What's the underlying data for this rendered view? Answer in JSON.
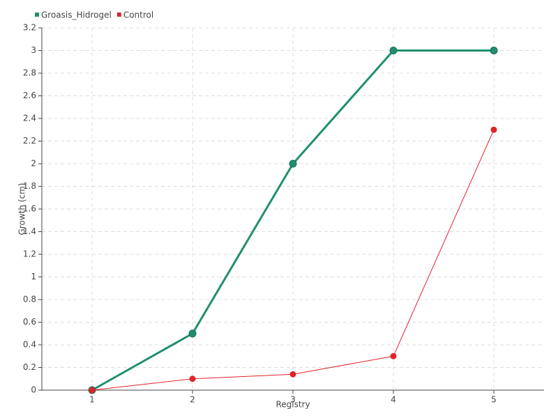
{
  "chart_data": {
    "type": "line",
    "x_label": "Registry",
    "y_label": "Growth (cm)",
    "x": [
      1,
      2,
      3,
      4,
      5
    ],
    "series": [
      {
        "name": "Groasis_Hidrogel",
        "color": "#1f8f70",
        "values": [
          0,
          0.5,
          2,
          3,
          3
        ]
      },
      {
        "name": "Control",
        "color": "#e0242c",
        "values": [
          0,
          0.1,
          0.14,
          0.3,
          2.3
        ]
      }
    ],
    "xlim": [
      0.5,
      5.5
    ],
    "xticks": [
      1,
      2,
      3,
      4,
      5
    ],
    "ylim": [
      0,
      3.2
    ],
    "yticks": [
      0,
      0.2,
      0.4,
      0.6,
      0.8,
      1,
      1.2,
      1.4,
      1.6,
      1.8,
      2,
      2.2,
      2.4,
      2.6,
      2.8,
      3,
      3.2
    ],
    "grid": true,
    "legend": "top-left"
  }
}
